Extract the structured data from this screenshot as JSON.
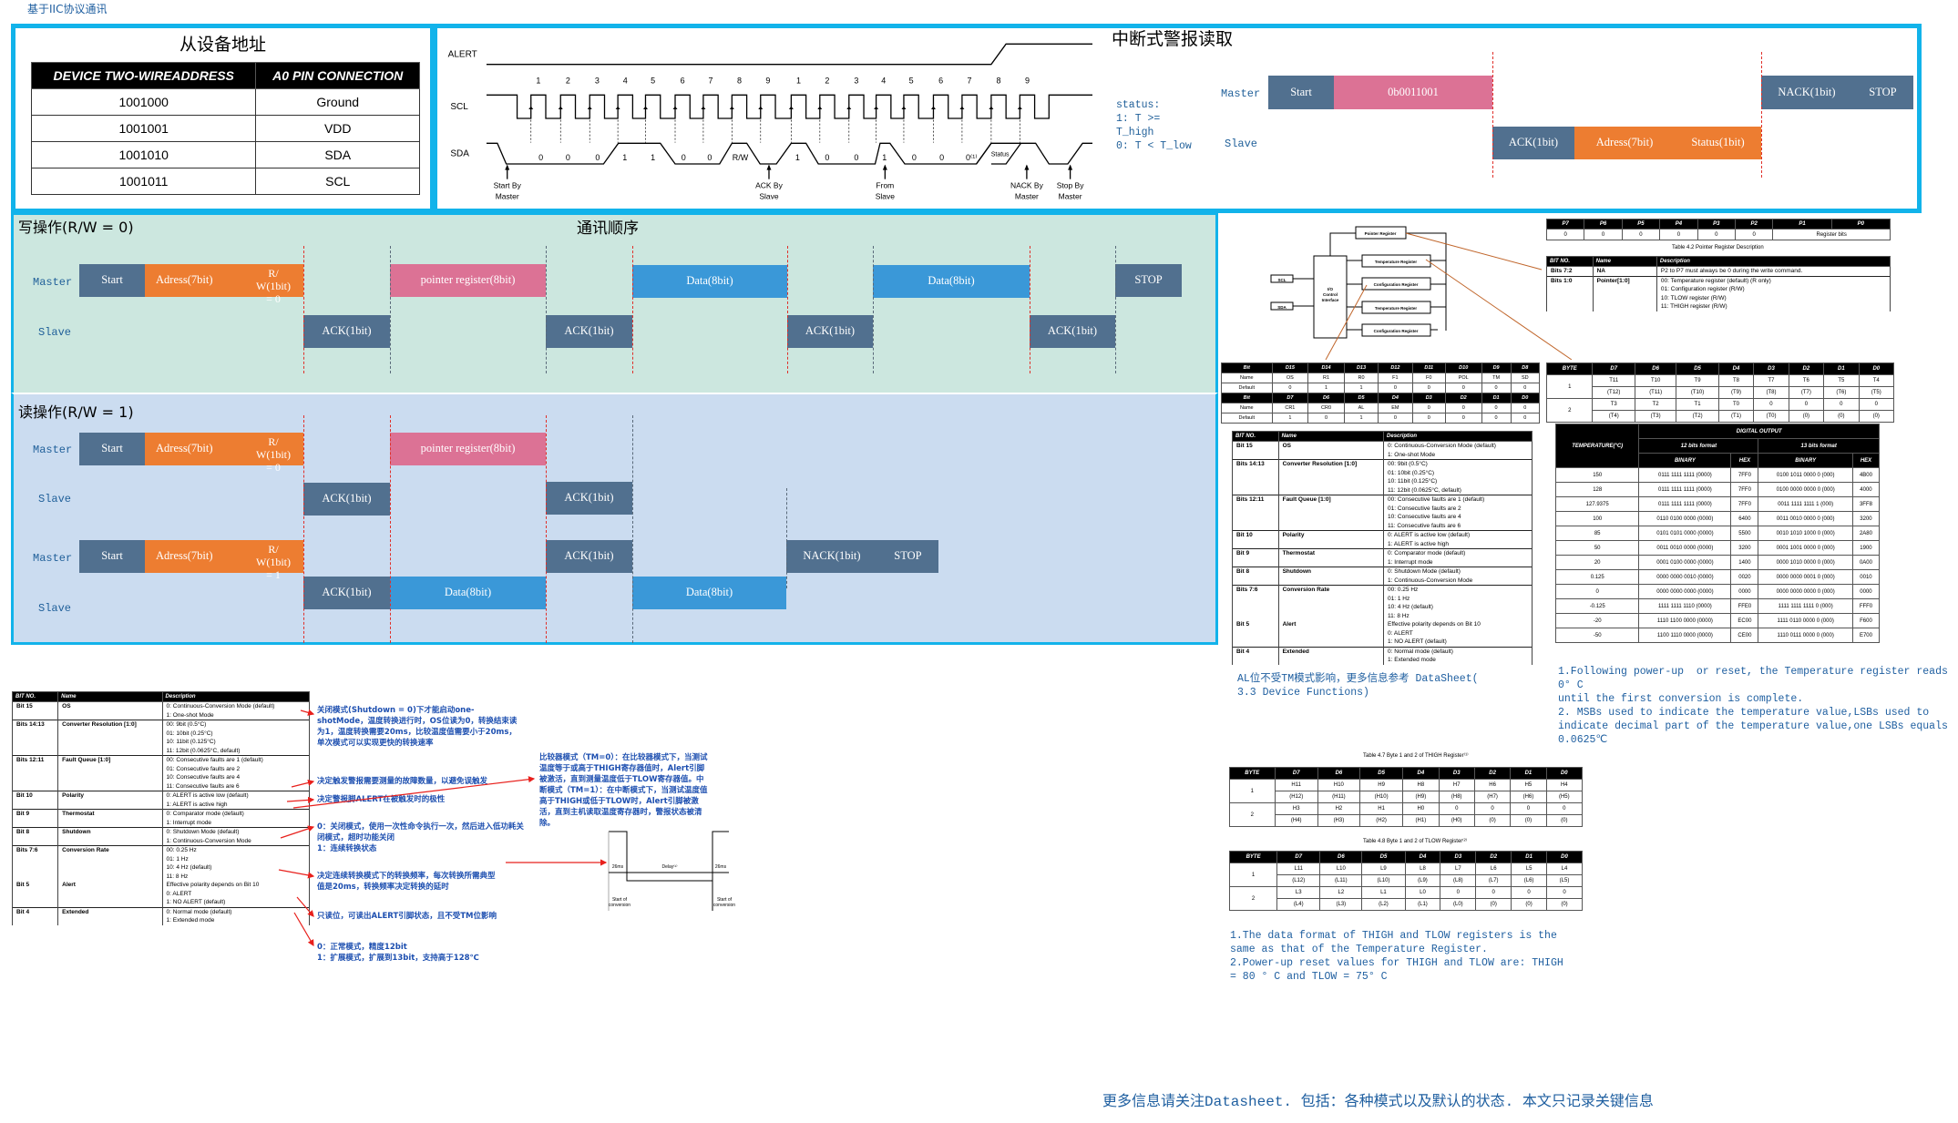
{
  "page_title": "基于IIC协议通讯",
  "slave_address": {
    "title": "从设备地址",
    "headers": [
      "DEVICE TWO-WIREADDRESS",
      "A0 PIN CONNECTION"
    ],
    "rows": [
      [
        "1001000",
        "Ground"
      ],
      [
        "1001001",
        "VDD"
      ],
      [
        "1001010",
        "SDA"
      ],
      [
        "1001011",
        "SCL"
      ]
    ]
  },
  "timing": {
    "alert": "ALERT",
    "scl": "SCL",
    "sda": "SDA",
    "clock_numbers": [
      "1",
      "2",
      "3",
      "4",
      "5",
      "6",
      "7",
      "8",
      "9",
      "1",
      "2",
      "3",
      "4",
      "5",
      "6",
      "7",
      "8",
      "9"
    ],
    "bits": [
      "0",
      "0",
      "0",
      "1",
      "1",
      "0",
      "0",
      "R/W",
      "",
      "1",
      "0",
      "0",
      "1",
      "0",
      "0",
      "0⁽¹⁾",
      "Status"
    ],
    "markers": [
      "Start By\nMaster",
      "ACK By\nSlave",
      "From\nSlave",
      "NACK By\nMaster",
      "Stop By\nMaster"
    ]
  },
  "alert_read": {
    "title": "中断式警报读取",
    "status_note": [
      "status:",
      "1: T >=",
      "T_high",
      "0: T < T_low"
    ],
    "master": "Master",
    "slave": "Slave",
    "start": "Start",
    "address": "0b0011001",
    "ack": "ACK(1bit)",
    "slave_addr": "Adress(7bit)",
    "status": "Status(1bit)",
    "nack": "NACK(1bit)",
    "stop": "STOP"
  },
  "sequence_title": "通讯顺序",
  "write": {
    "title": "写操作(R/W = 0)",
    "master": "Master",
    "slave": "Slave",
    "start": "Start",
    "address": "Adress(7bit)",
    "rw": "R/\nW(1bit)\n= 0",
    "pointer": "pointer register(8bit)",
    "data1": "Data(8bit)",
    "data2": "Data(8bit)",
    "stop": "STOP",
    "ack": "ACK(1bit)"
  },
  "read": {
    "title": "读操作(R/W = 1)",
    "master": "Master",
    "slave": "Slave",
    "start": "Start",
    "address": "Adress(7bit)",
    "rw0": "R/\nW(1bit)\n= 0",
    "rw1": "R/\nW(1bit)\n= 1",
    "pointer": "pointer register(8bit)",
    "ack": "ACK(1bit)",
    "data": "Data(8bit)",
    "nack": "NACK(1bit)",
    "stop": "STOP"
  },
  "block_diagram": {
    "pointer": "Pointer Register",
    "temp1": "Temperature Register",
    "config1": "Configuration Register",
    "temp2": "Temperature Register",
    "config2": "Configuration Register",
    "scl": "SCL",
    "sda": "SDA",
    "io": "I/O\nControl\nInterface"
  },
  "pointer_table": {
    "headers": [
      "P7",
      "P6",
      "P5",
      "P4",
      "P3",
      "P2",
      "P1",
      "P0"
    ],
    "values": [
      "0",
      "0",
      "0",
      "0",
      "0",
      "0",
      "Register bits"
    ],
    "caption": "Table 4.2 Pointer Register Description",
    "desc_headers": [
      "BIT NO.",
      "Name",
      "Description"
    ],
    "desc_rows": [
      [
        "Bits 7:2",
        "NA",
        "P2 to P7 must always be 0 during the write command."
      ],
      [
        "Bits 1:0",
        "Pointer[1:0]",
        "00: Temperature register (default) (R only)\n01: Configuration register (R/W)\n10: TLOW register (R/W)\n11: THIGH register (R/W)"
      ]
    ]
  },
  "temp_byte_table": {
    "headers": [
      "BYTE",
      "D7",
      "D6",
      "D5",
      "D4",
      "D3",
      "D2",
      "D1",
      "D0"
    ],
    "rows": [
      [
        "1",
        "T11",
        "T10",
        "T9",
        "T8",
        "T7",
        "T6",
        "T5",
        "T4"
      ],
      [
        "",
        "(T12)",
        "(T11)",
        "(T10)",
        "(T9)",
        "(T8)",
        "(T7)",
        "(T6)",
        "(T5)"
      ],
      [
        "2",
        "T3",
        "T2",
        "T1",
        "T0",
        "0",
        "0",
        "0",
        "0"
      ],
      [
        "",
        "(T4)",
        "(T3)",
        "(T2)",
        "(T1)",
        "(T0)",
        "(0)",
        "(0)",
        "(0)"
      ]
    ]
  },
  "config_table": {
    "rows": [
      [
        "Bit",
        "D15",
        "D14",
        "D13",
        "D12",
        "D11",
        "D10",
        "D9",
        "D8"
      ],
      [
        "Name",
        "OS",
        "R1",
        "R0",
        "F1",
        "F0",
        "POL",
        "TM",
        "SD"
      ],
      [
        "Default",
        "0",
        "1",
        "1",
        "0",
        "0",
        "0",
        "0",
        "0"
      ],
      [
        "Bit",
        "D7",
        "D6",
        "D5",
        "D4",
        "D3",
        "D2",
        "D1",
        "D0"
      ],
      [
        "Name",
        "CR1",
        "CR0",
        "AL",
        "EM",
        "0",
        "0",
        "0",
        "0"
      ],
      [
        "Default",
        "1",
        "0",
        "1",
        "0",
        "0",
        "0",
        "0",
        "0"
      ]
    ]
  },
  "config_desc": {
    "headers": [
      "BIT NO.",
      "Name",
      "Description"
    ],
    "rows": [
      [
        "Bit 15",
        "OS",
        "0: Continuous-Conversion Mode (default)\n1: One-shot Mode"
      ],
      [
        "Bits 14:13",
        "Converter Resolution [1:0]",
        "00: 9bit (0.5°C)\n01: 10bit (0.25°C)\n10: 11bit (0.125°C)\n11: 12bit (0.0625°C, default)"
      ],
      [
        "Bits 12:11",
        "Fault Queue [1:0]",
        "00: Consecutive faults are 1 (default)\n01: Consecutive faults are 2\n10: Consecutive faults are 4\n11: Consecutive faults are 6"
      ],
      [
        "Bit 10",
        "Polarity",
        "0: ALERT is active low (default)\n1: ALERT is active high"
      ],
      [
        "Bit 9",
        "Thermostat",
        "0: Comparator mode (default)\n1: Interrupt mode"
      ],
      [
        "Bit 8",
        "Shutdown",
        "0: Shutdown Mode (default)\n1: Continuous-Conversion Mode"
      ],
      [
        "Bits 7:6\n\n\n\nBit 5",
        "Conversion Rate\n\n\n\nAlert",
        "00: 0.25 Hz\n01: 1 Hz\n10: 4 Hz (default)\n11: 8 Hz\nEffective polarity depends on Bit 10\n0: ALERT\n1: NO ALERT (default)"
      ],
      [
        "Bit 4",
        "Extended",
        "0: Normal mode (default)\n1: Extended mode"
      ]
    ]
  },
  "al_note": "AL位不受TM模式影响，更多信息参考 DataSheet(\n3.3 Device Functions)",
  "digital_output": {
    "title": "DIGITAL OUTPUT",
    "temp_header": "TEMPERATURE(°C)",
    "fmt12": "12 bits format",
    "fmt13": "13 bits format",
    "binary": "BINARY",
    "hex": "HEX",
    "rows": [
      [
        "150",
        "0111 1111 1111 (0000)",
        "7FF0",
        "0100 1011 0000 0 (000)",
        "4B00"
      ],
      [
        "128",
        "0111 1111 1111 (0000)",
        "7FF0",
        "0100 0000 0000 0 (000)",
        "4000"
      ],
      [
        "127.9375",
        "0111 1111 1111 (0000)",
        "7FF0",
        "0011 1111 1111 1 (000)",
        "3FF8"
      ],
      [
        "100",
        "0110 0100 0000 (0000)",
        "6400",
        "0011 0010 0000 0 (000)",
        "3200"
      ],
      [
        "85",
        "0101 0101 0000 (0000)",
        "5500",
        "0010 1010 1000 0 (000)",
        "2A80"
      ],
      [
        "50",
        "0011 0010 0000 (0000)",
        "3200",
        "0001 1001 0000 0 (000)",
        "1900"
      ],
      [
        "20",
        "0001 0100 0000 (0000)",
        "1400",
        "0000 1010 0000 0 (000)",
        "0A00"
      ],
      [
        "0.125",
        "0000 0000 0010 (0000)",
        "0020",
        "0000 0000 0001 0 (000)",
        "0010"
      ],
      [
        "0",
        "0000 0000 0000 (0000)",
        "0000",
        "0000 0000 0000 0 (000)",
        "0000"
      ],
      [
        "-0.125",
        "1111 1111 1110 (0000)",
        "FFE0",
        "1111 1111 1111 0 (000)",
        "FFF0"
      ],
      [
        "-20",
        "1110 1100 0000 (0000)",
        "EC00",
        "1111 0110 0000 0 (000)",
        "F600"
      ],
      [
        "-50",
        "1100 1110 0000 (0000)",
        "CE00",
        "1110 0111 0000 0 (000)",
        "E700"
      ]
    ]
  },
  "temp_notes": "1.Following power-up  or reset, the Temperature register reads\n0° C\nuntil the first conversion is complete.\n2. MSBs used to indicate the temperature value,LSBs used to\nindicate decimal part of the temperature value,one LSBs equals\n0.0625℃",
  "thigh_table": {
    "caption": "Table 4.7 Byte 1 and 2 of THIGH Register⁽¹⁾",
    "headers": [
      "BYTE",
      "D7",
      "D6",
      "D5",
      "D4",
      "D3",
      "D2",
      "D1",
      "D0"
    ],
    "rows": [
      [
        "1",
        "H11",
        "H10",
        "H9",
        "H8",
        "H7",
        "H6",
        "H5",
        "H4"
      ],
      [
        "",
        "(H12)",
        "(H11)",
        "(H10)",
        "(H9)",
        "(H8)",
        "(H7)",
        "(H6)",
        "(H5)"
      ],
      [
        "2",
        "H3",
        "H2",
        "H1",
        "H0",
        "0",
        "0",
        "0",
        "0"
      ],
      [
        "",
        "(H4)",
        "(H3)",
        "(H2)",
        "(H1)",
        "(H0)",
        "(0)",
        "(0)",
        "(0)"
      ]
    ]
  },
  "tlow_table": {
    "caption": "Table 4.8 Byte 1 and 2 of TLOW Register⁽²⁾",
    "headers": [
      "BYTE",
      "D7",
      "D6",
      "D5",
      "D4",
      "D3",
      "D2",
      "D1",
      "D0"
    ],
    "rows": [
      [
        "1",
        "L11",
        "L10",
        "L9",
        "L8",
        "L7",
        "L6",
        "L5",
        "L4"
      ],
      [
        "",
        "(L12)",
        "(L11)",
        "(L10)",
        "(L9)",
        "(L8)",
        "(L7)",
        "(L6)",
        "(L5)"
      ],
      [
        "2",
        "L3",
        "L2",
        "L1",
        "L0",
        "0",
        "0",
        "0",
        "0"
      ],
      [
        "",
        "(L4)",
        "(L3)",
        "(L2)",
        "(L1)",
        "(L0)",
        "(0)",
        "(0)",
        "(0)"
      ]
    ]
  },
  "thigh_notes": "1.The data format of THIGH and TLOW registers is the\nsame as that of the Temperature Register.\n2.Power-up reset values for THIGH and TLOW are: THIGH\n= 80 ° C and TLOW = 75° C",
  "annotations": {
    "os": "关闭模式(Shutdown = 0)下才能启动one-shotMode，温度转换进行时，OS位读为0，转换结束读为1，温度转换需要20ms，比较温度值需要小于20ms，单次模式可以实现更快的转换速率",
    "fault": "决定触发警报需要测量的故障数量，以避免误触发",
    "polarity": "决定警报脚ALERT在被触发时的极性",
    "shutdown": "0：关闭模式，使用一次性命令执行一次，然后进入低功耗关闭模式，超时功能关闭\n1：连续转换状态",
    "rate": "决定连续转换模式下的转换频率，每次转换所需典型值是20ms，转换频率决定转换的延时",
    "alert": "只读位，可读出ALERT引脚状态，且不受TM位影响",
    "extended": "0：正常模式，精度12bit\n1：扩展模式，扩展到13bit，支持高于128℃",
    "thermostat": "比较器模式（TM=0）：在比较器模式下，当测试温度等于或高于THIGH寄存器值时，Alert引脚被激活，直到测量温度低于TLOW寄存器值。中断模式（TM=1）：在中断模式下，当测试温度值高于THIGH或低于TLOW时，Alert引脚被激活，直到主机读取温度寄存器时，警报状态被清除。"
  },
  "conversion_timing": {
    "t1": "26ms",
    "delay": "Delay⁽¹⁾",
    "t2": "26ms",
    "start1": "Start of\nconversion",
    "start2": "Start of\nconversion"
  },
  "footer": "更多信息请关注Datasheet. 包括：各种模式以及默认的状态. 本文只记录关键信息",
  "colors": {
    "panel_border": "#12b3ea",
    "write_bg": "#cce7df",
    "read_bg": "#cbdcf0",
    "slate": "#51708f",
    "orange": "#ed7d31",
    "pink": "#dc7295",
    "blue": "#3a98d8",
    "divider": "#e0302a"
  }
}
